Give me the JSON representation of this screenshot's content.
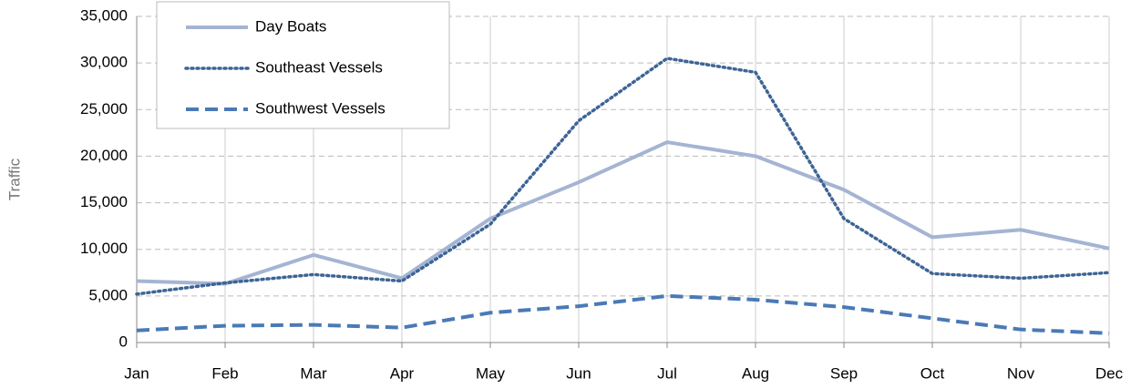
{
  "chart_data": {
    "type": "line",
    "y_label": "Traffic",
    "categories": [
      "Jan",
      "Feb",
      "Mar",
      "Apr",
      "May",
      "Jun",
      "Jul",
      "Aug",
      "Sep",
      "Oct",
      "Nov",
      "Dec"
    ],
    "series": [
      {
        "name": "Day Boats",
        "color": "#a5b4d3",
        "dash": "solid",
        "values": [
          6600,
          6300,
          9400,
          6900,
          13300,
          17200,
          21500,
          20000,
          16400,
          11300,
          12100,
          10100
        ]
      },
      {
        "name": "Southeast Vessels",
        "color": "#3d6496",
        "dash": "dotted",
        "values": [
          5200,
          6400,
          7300,
          6600,
          12700,
          23800,
          30500,
          29000,
          13300,
          7400,
          6900,
          7500
        ]
      },
      {
        "name": "Southwest Vessels",
        "color": "#4a7ab5",
        "dash": "dashed",
        "values": [
          1300,
          1800,
          1900,
          1600,
          3200,
          3900,
          5000,
          4600,
          3800,
          2600,
          1400,
          1000
        ]
      }
    ],
    "ylim": [
      0,
      35000
    ],
    "yticks": [
      0,
      {
        "value": 5000,
        "label": "5,000"
      },
      {
        "value": 10000,
        "label": "10,000"
      },
      {
        "value": 15000,
        "label": "15,000"
      },
      {
        "value": 20000,
        "label": "20,000"
      },
      {
        "value": 25000,
        "label": "25,000"
      },
      {
        "value": 30000,
        "label": "30,000"
      },
      {
        "value": 35000,
        "label": "35,000"
      }
    ],
    "grid": true,
    "legend": "top-left"
  }
}
